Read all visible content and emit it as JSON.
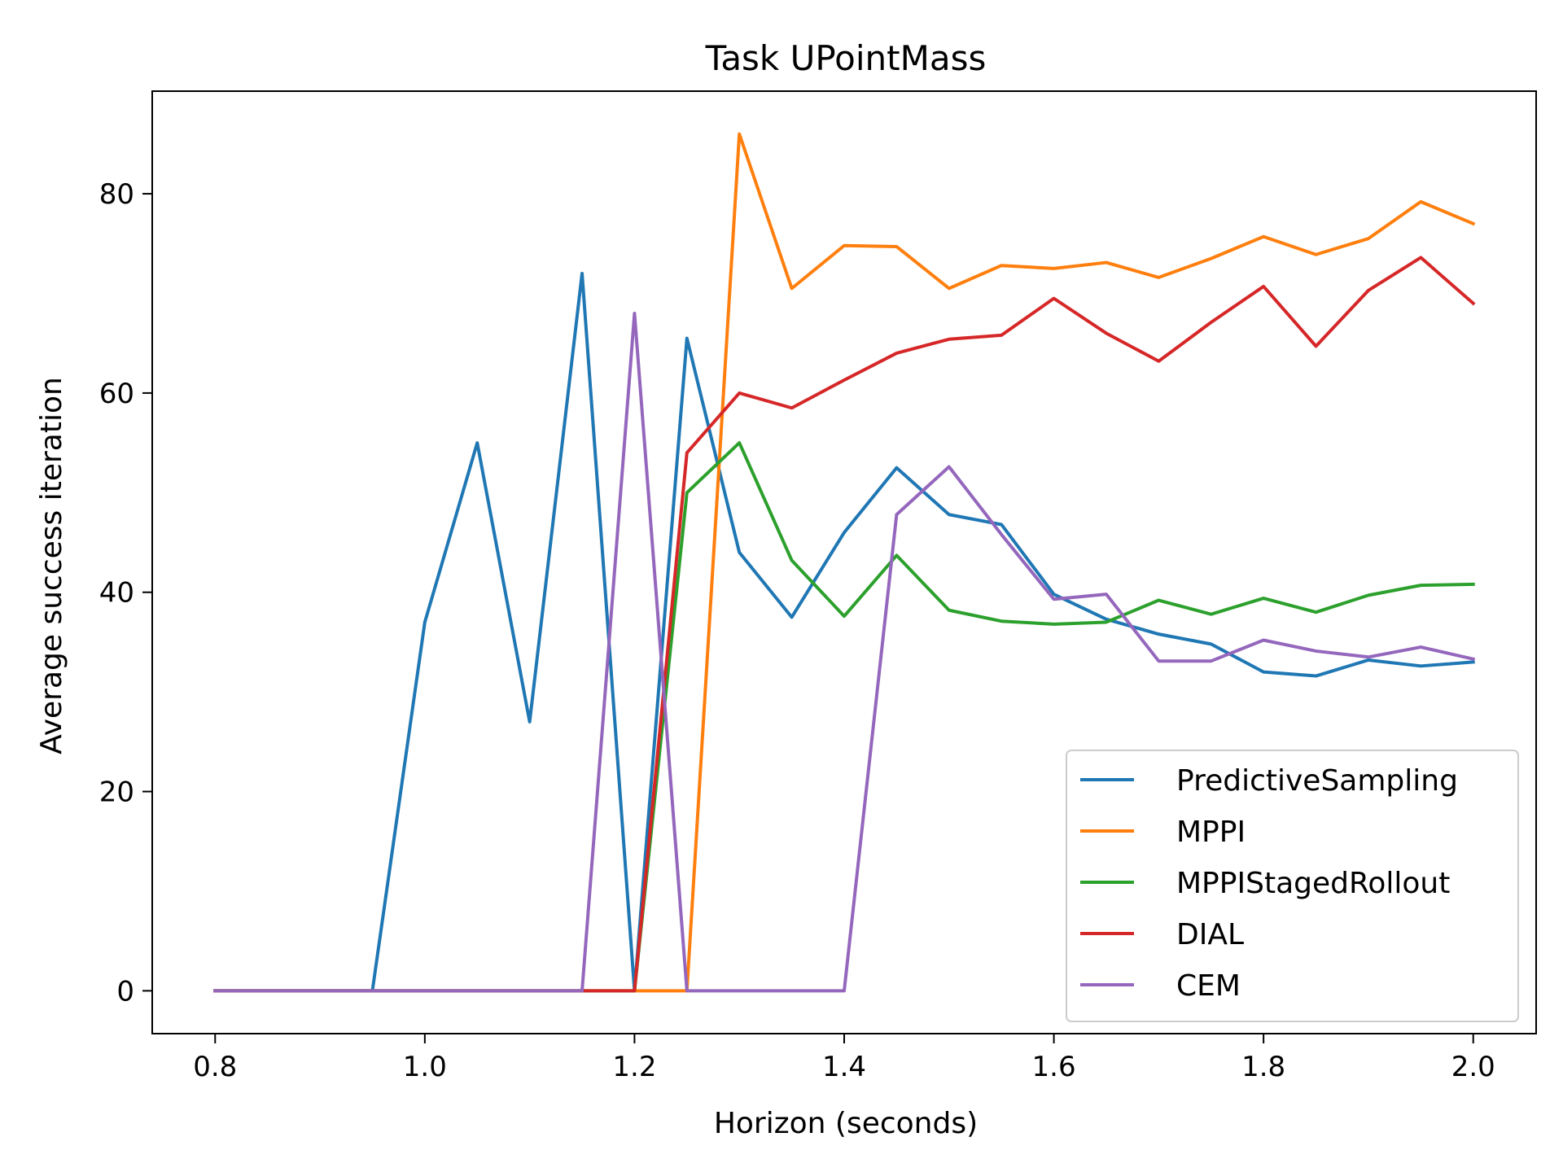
{
  "chart_data": {
    "type": "line",
    "title": "Task UPointMass",
    "xlabel": "Horizon (seconds)",
    "ylabel": "Average success iteration",
    "xlim": [
      0.74,
      2.06
    ],
    "ylim": [
      -4.3,
      90.3
    ],
    "xticks": [
      "0.8",
      "1.0",
      "1.2",
      "1.4",
      "1.6",
      "1.8",
      "2.0"
    ],
    "yticks": [
      "0",
      "20",
      "40",
      "60",
      "80"
    ],
    "grid": false,
    "legend_position": "lower-right",
    "x": [
      0.8,
      0.85,
      0.9,
      0.95,
      1.0,
      1.05,
      1.1,
      1.15,
      1.2,
      1.25,
      1.3,
      1.35,
      1.4,
      1.45,
      1.5,
      1.55,
      1.6,
      1.65,
      1.7,
      1.75,
      1.8,
      1.85,
      1.9,
      1.95,
      2.0
    ],
    "series": [
      {
        "name": "PredictiveSampling",
        "color": "#1f77b4",
        "values": [
          0,
          0,
          0,
          0,
          37,
          55,
          27,
          72,
          0,
          65.5,
          44,
          37.5,
          46,
          52.5,
          47.8,
          46.8,
          39.8,
          37.3,
          35.8,
          34.8,
          32,
          31.6,
          33.2,
          32.6,
          33
        ]
      },
      {
        "name": "MPPI",
        "color": "#ff7f0e",
        "values": [
          0,
          0,
          0,
          0,
          0,
          0,
          0,
          0,
          0,
          0,
          86,
          70.5,
          74.8,
          74.7,
          70.5,
          72.8,
          72.5,
          73.1,
          71.6,
          73.5,
          75.7,
          73.9,
          75.5,
          79.2,
          77
        ]
      },
      {
        "name": "MPPIStagedRollout",
        "color": "#2ca02c",
        "values": [
          0,
          0,
          0,
          0,
          0,
          0,
          0,
          0,
          0,
          50,
          55,
          43.2,
          37.6,
          43.7,
          38.2,
          37.1,
          36.8,
          37,
          39.2,
          37.8,
          39.4,
          38,
          39.7,
          40.7,
          40.8
        ]
      },
      {
        "name": "DIAL",
        "color": "#d62728",
        "values": [
          0,
          0,
          0,
          0,
          0,
          0,
          0,
          0,
          0,
          54,
          60,
          58.5,
          61.3,
          64,
          65.4,
          65.8,
          69.5,
          66,
          63.2,
          67.1,
          70.7,
          64.7,
          70.3,
          73.6,
          69
        ]
      },
      {
        "name": "CEM",
        "color": "#9467bd",
        "values": [
          0,
          0,
          0,
          0,
          0,
          0,
          0,
          0,
          68,
          0,
          0,
          0,
          0,
          47.8,
          52.6,
          45.8,
          39.3,
          39.8,
          33.1,
          33.1,
          35.2,
          34.1,
          33.5,
          34.5,
          33.3
        ]
      }
    ]
  }
}
